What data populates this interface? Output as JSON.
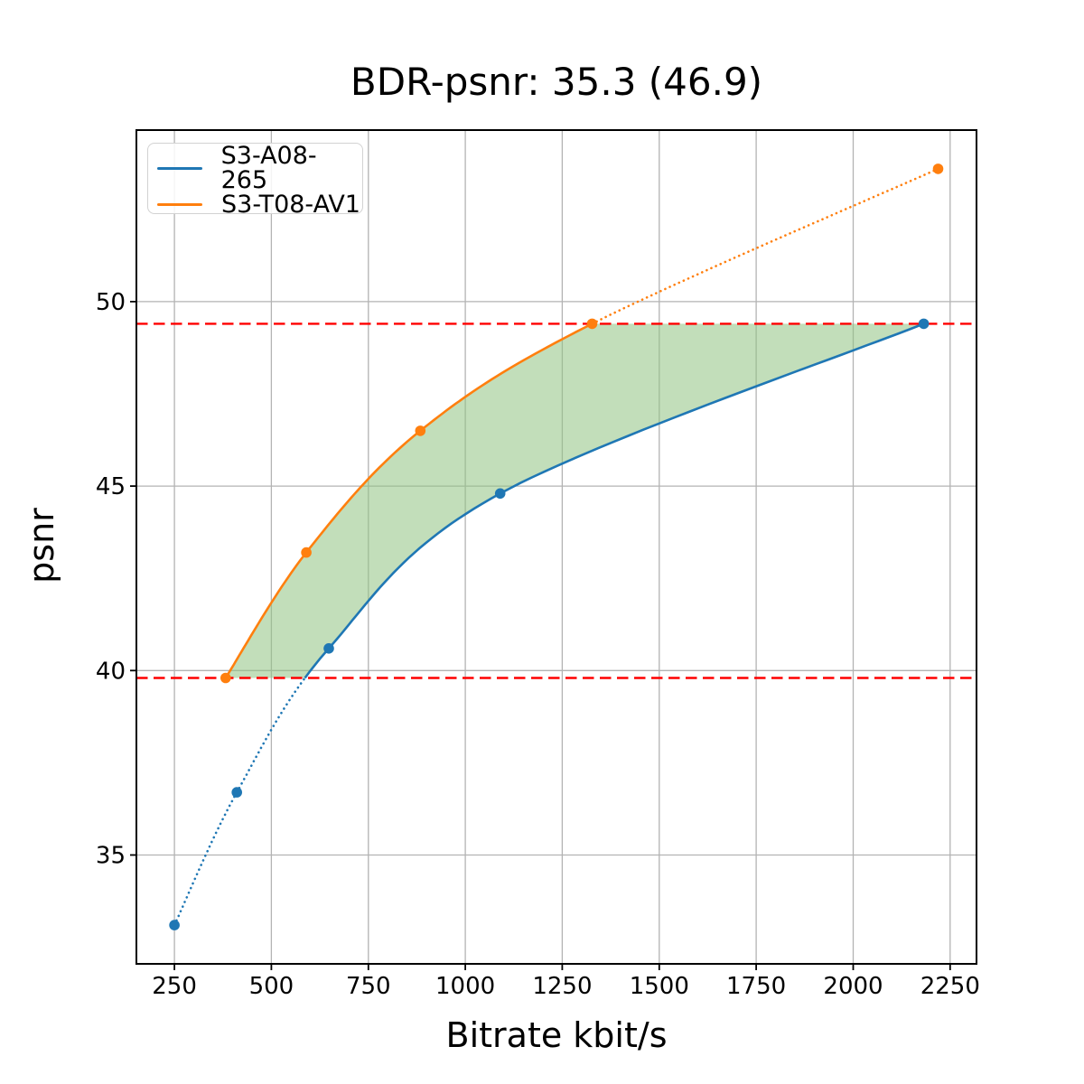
{
  "figure": {
    "background": "#ffffff"
  },
  "chart_data": {
    "type": "line",
    "title": "BDR-psnr: 35.3 (46.9)",
    "xlabel": "Bitrate kbit/s",
    "ylabel": "psnr",
    "xlim": [
      152,
      2318
    ],
    "ylim": [
      32.05,
      54.65
    ],
    "x_ticks": [
      250,
      500,
      750,
      1000,
      1250,
      1500,
      1750,
      2000,
      2250
    ],
    "y_ticks": [
      35,
      40,
      45,
      50
    ],
    "grid": true,
    "grid_color": "#b3b3b3",
    "legend_position": "upper-left",
    "overlap_psnr_range": [
      39.8,
      49.4
    ],
    "series": [
      {
        "name": "S3-A08-265",
        "color": "#1f77b4",
        "marker": "circle",
        "x": [
          250,
          411,
          648,
          1090,
          2182
        ],
        "y": [
          33.1,
          36.7,
          40.6,
          44.8,
          49.4
        ],
        "line_style": "dotted outside overlap range, solid inside"
      },
      {
        "name": "S3-T08-AV1",
        "color": "#ff7f0e",
        "marker": "circle",
        "x": [
          382,
          590,
          884,
          1327,
          2219
        ],
        "y": [
          39.8,
          43.2,
          46.5,
          49.4,
          53.6
        ],
        "line_style": "dotted outside overlap range, solid inside"
      }
    ],
    "hlines": [
      {
        "y": 49.4,
        "color": "#ff0000",
        "style": "dashed"
      },
      {
        "y": 39.8,
        "color": "#ff0000",
        "style": "dashed"
      }
    ],
    "shaded_region": {
      "description": "area between the two curves inside the overlap psnr range",
      "color": "#8fc382",
      "opacity": 0.55
    }
  }
}
